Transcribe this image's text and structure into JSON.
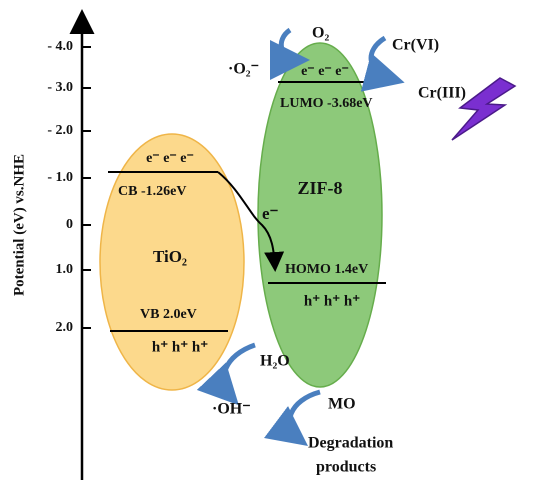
{
  "axis": {
    "title": "Potential (eV) vs.NHE",
    "ticks": [
      "- 4.0",
      "- 3.0",
      "- 2.0",
      "- 1.0",
      "0",
      "1.0",
      "2.0"
    ]
  },
  "tio2": {
    "label": "TiO₂",
    "electrons": "e⁻  e⁻  e⁻",
    "cb": "CB -1.26eV",
    "vb": "VB  2.0eV",
    "holes": "h⁺ h⁺ h⁺"
  },
  "zif8": {
    "label": "ZIF-8",
    "electrons": "e⁻  e⁻  e⁻",
    "lumo": "LUMO -3.68eV",
    "homo": "HOMO 1.4eV",
    "holes": "h⁺  h⁺  h⁺"
  },
  "transfer": "e⁻",
  "species": {
    "o2": "O₂",
    "superoxide": "·O₂⁻",
    "cr6": "Cr(VI)",
    "cr3": "Cr(III)",
    "h2o": "H₂O",
    "hydroxyl": "·OH⁻",
    "mo": "MO",
    "products_line1": "Degradation",
    "products_line2": "products"
  }
}
